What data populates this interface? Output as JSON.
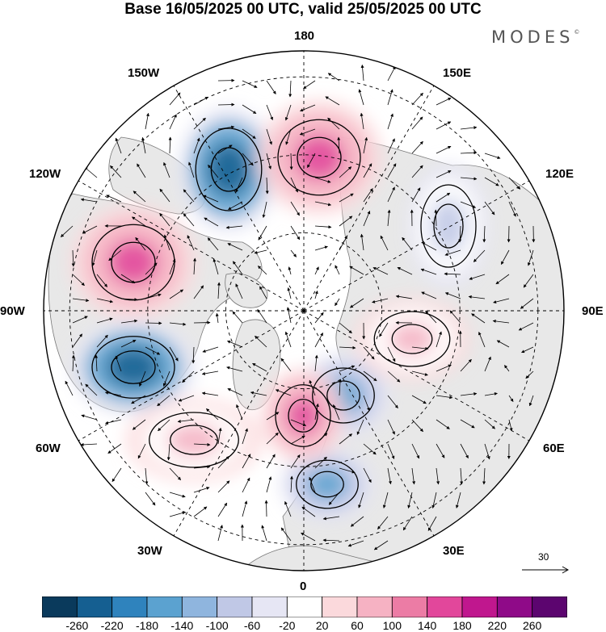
{
  "header": {
    "title": "Base 16/05/2025 00 UTC, valid 25/05/2025 00 UTC",
    "brand": "MODES",
    "brand_mark": "©"
  },
  "map": {
    "projection": "north-polar-stereographic",
    "longitude_labels": [
      "180",
      "150E",
      "120E",
      "90E",
      "60E",
      "30E",
      "0",
      "30W",
      "60W",
      "90W",
      "120W",
      "150W"
    ],
    "field": "height anomaly with wind vectors",
    "graticule": "dashed",
    "land_color": "#e8e8e8",
    "negative_centers": [
      {
        "region": "NE Pacific / Gulf of Alaska",
        "level": "deep"
      },
      {
        "region": "Hudson Bay / Labrador",
        "level": "deep"
      },
      {
        "region": "Barents / Scandinavia",
        "level": "moderate"
      },
      {
        "region": "Mediterranean",
        "level": "moderate"
      },
      {
        "region": "Central Siberia",
        "level": "weak"
      }
    ],
    "positive_centers": [
      {
        "region": "Western Canada",
        "level": "strong"
      },
      {
        "region": "Bering / Chukchi",
        "level": "strong"
      },
      {
        "region": "North Atlantic",
        "level": "moderate"
      },
      {
        "region": "Greenland-Iceland",
        "level": "strong"
      },
      {
        "region": "Eastern Europe / Urals",
        "level": "moderate"
      }
    ]
  },
  "vector_reference": {
    "value": "30"
  },
  "colorbar": {
    "labels": [
      "-260",
      "-220",
      "-180",
      "-140",
      "-100",
      "-60",
      "-20",
      "20",
      "60",
      "100",
      "140",
      "180",
      "220",
      "260"
    ],
    "colors": [
      "#0a3a5c",
      "#155f91",
      "#2f83bd",
      "#5ba2d0",
      "#8fb5de",
      "#c0c8e6",
      "#e6e6f4",
      "#ffffff",
      "#fbd9dc",
      "#f6b2c3",
      "#ec7ca5",
      "#e2479b",
      "#c0178e",
      "#8f0a88",
      "#5c056f"
    ]
  }
}
